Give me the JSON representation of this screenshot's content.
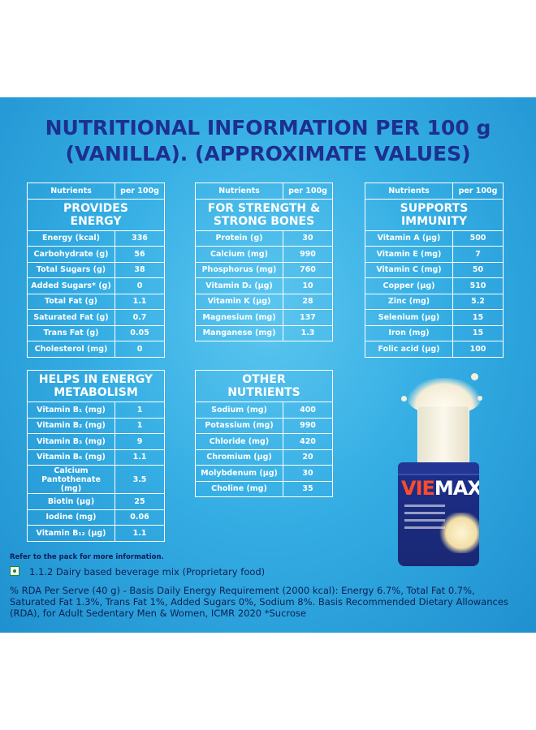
{
  "title": {
    "line1": "NUTRITIONAL INFORMATION PER 100 g",
    "line2": "(VANILLA). (APPROXIMATE VALUES)"
  },
  "headers": {
    "nutrients": "Nutrients",
    "per100": "per 100g"
  },
  "energy": {
    "section_line1": "PROVIDES",
    "section_line2": "ENERGY",
    "rows": [
      {
        "label": "Energy (kcal)",
        "value": "336"
      },
      {
        "label": "Carbohydrate (g)",
        "value": "56"
      },
      {
        "label": "Total Sugars (g)",
        "value": "38"
      },
      {
        "label": "Added Sugars* (g)",
        "value": "0"
      },
      {
        "label": "Total Fat (g)",
        "value": "1.1"
      },
      {
        "label": "Saturated Fat (g)",
        "value": "0.7"
      },
      {
        "label": "Trans Fat (g)",
        "value": "0.05"
      },
      {
        "label": "Cholesterol (mg)",
        "value": "0"
      }
    ]
  },
  "strength": {
    "section_line1": "FOR STRENGTH &",
    "section_line2": "STRONG BONES",
    "rows": [
      {
        "label": "Protein (g)",
        "value": "30"
      },
      {
        "label": "Calcium (mg)",
        "value": "990"
      },
      {
        "label": "Phosphorus (mg)",
        "value": "760"
      },
      {
        "label": "Vitamin D₂ (µg)",
        "value": "10"
      },
      {
        "label": "Vitamin K (µg)",
        "value": "28"
      },
      {
        "label": "Magnesium (mg)",
        "value": "137"
      },
      {
        "label": "Manganese (mg)",
        "value": "1.3"
      }
    ]
  },
  "immunity": {
    "section_line1": "SUPPORTS",
    "section_line2": "IMMUNITY",
    "rows": [
      {
        "label": "Vitamin A (µg)",
        "value": "500"
      },
      {
        "label": "Vitamin E (mg)",
        "value": "7"
      },
      {
        "label": "Vitamin C (mg)",
        "value": "50"
      },
      {
        "label": "Copper (µg)",
        "value": "510"
      },
      {
        "label": "Zinc (mg)",
        "value": "5.2"
      },
      {
        "label": "Selenium (µg)",
        "value": "15"
      },
      {
        "label": "Iron (mg)",
        "value": "15"
      },
      {
        "label": "Folic acid (µg)",
        "value": "100"
      }
    ]
  },
  "metabolism": {
    "section_line1": "HELPS IN ENERGY",
    "section_line2": "METABOLISM",
    "rows": [
      {
        "label": "Vitamin B₁ (mg)",
        "value": "1"
      },
      {
        "label": "Vitamin B₂ (mg)",
        "value": "1"
      },
      {
        "label": "Vitamin B₃ (mg)",
        "value": "9"
      },
      {
        "label": "Vitamin B₆ (mg)",
        "value": "1.1"
      },
      {
        "label": "Calcium Pantothenate (mg)",
        "value": "3.5"
      },
      {
        "label": "Biotin (µg)",
        "value": "25"
      },
      {
        "label": "Iodine (mg)",
        "value": "0.06"
      },
      {
        "label": "Vitamin B₁₂ (µg)",
        "value": "1.1"
      }
    ]
  },
  "other": {
    "section_line1": "OTHER",
    "section_line2": "NUTRIENTS",
    "rows": [
      {
        "label": "Sodium (mg)",
        "value": "400"
      },
      {
        "label": "Potassium (mg)",
        "value": "990"
      },
      {
        "label": "Chloride (mg)",
        "value": "420"
      },
      {
        "label": "Chromium (µg)",
        "value": "20"
      },
      {
        "label": "Molybdenum (µg)",
        "value": "30"
      },
      {
        "label": "Choline (mg)",
        "value": "35"
      }
    ]
  },
  "product": {
    "brand_red": "VIE",
    "brand_white": "MAX"
  },
  "note": "Refer to the pack for more information.",
  "category": "1.1.2 Dairy based beverage mix (Proprietary food)",
  "rda": "% RDA Per Serve (40 g) - Basis Daily Energy Requirement (2000 kcal): Energy 6.7%, Total Fat 0.7%, Saturated Fat 1.3%, Trans Fat 1%, Added Sugars 0%, Sodium 8%. Basis Recommended Dietary Allowances (RDA), for Adult Sedentary Men & Women, ICMR 2020 *Sucrose",
  "colors": {
    "background": "#35aee4",
    "title": "#1d2f8f",
    "veg_mark": "#1a8a2f"
  }
}
